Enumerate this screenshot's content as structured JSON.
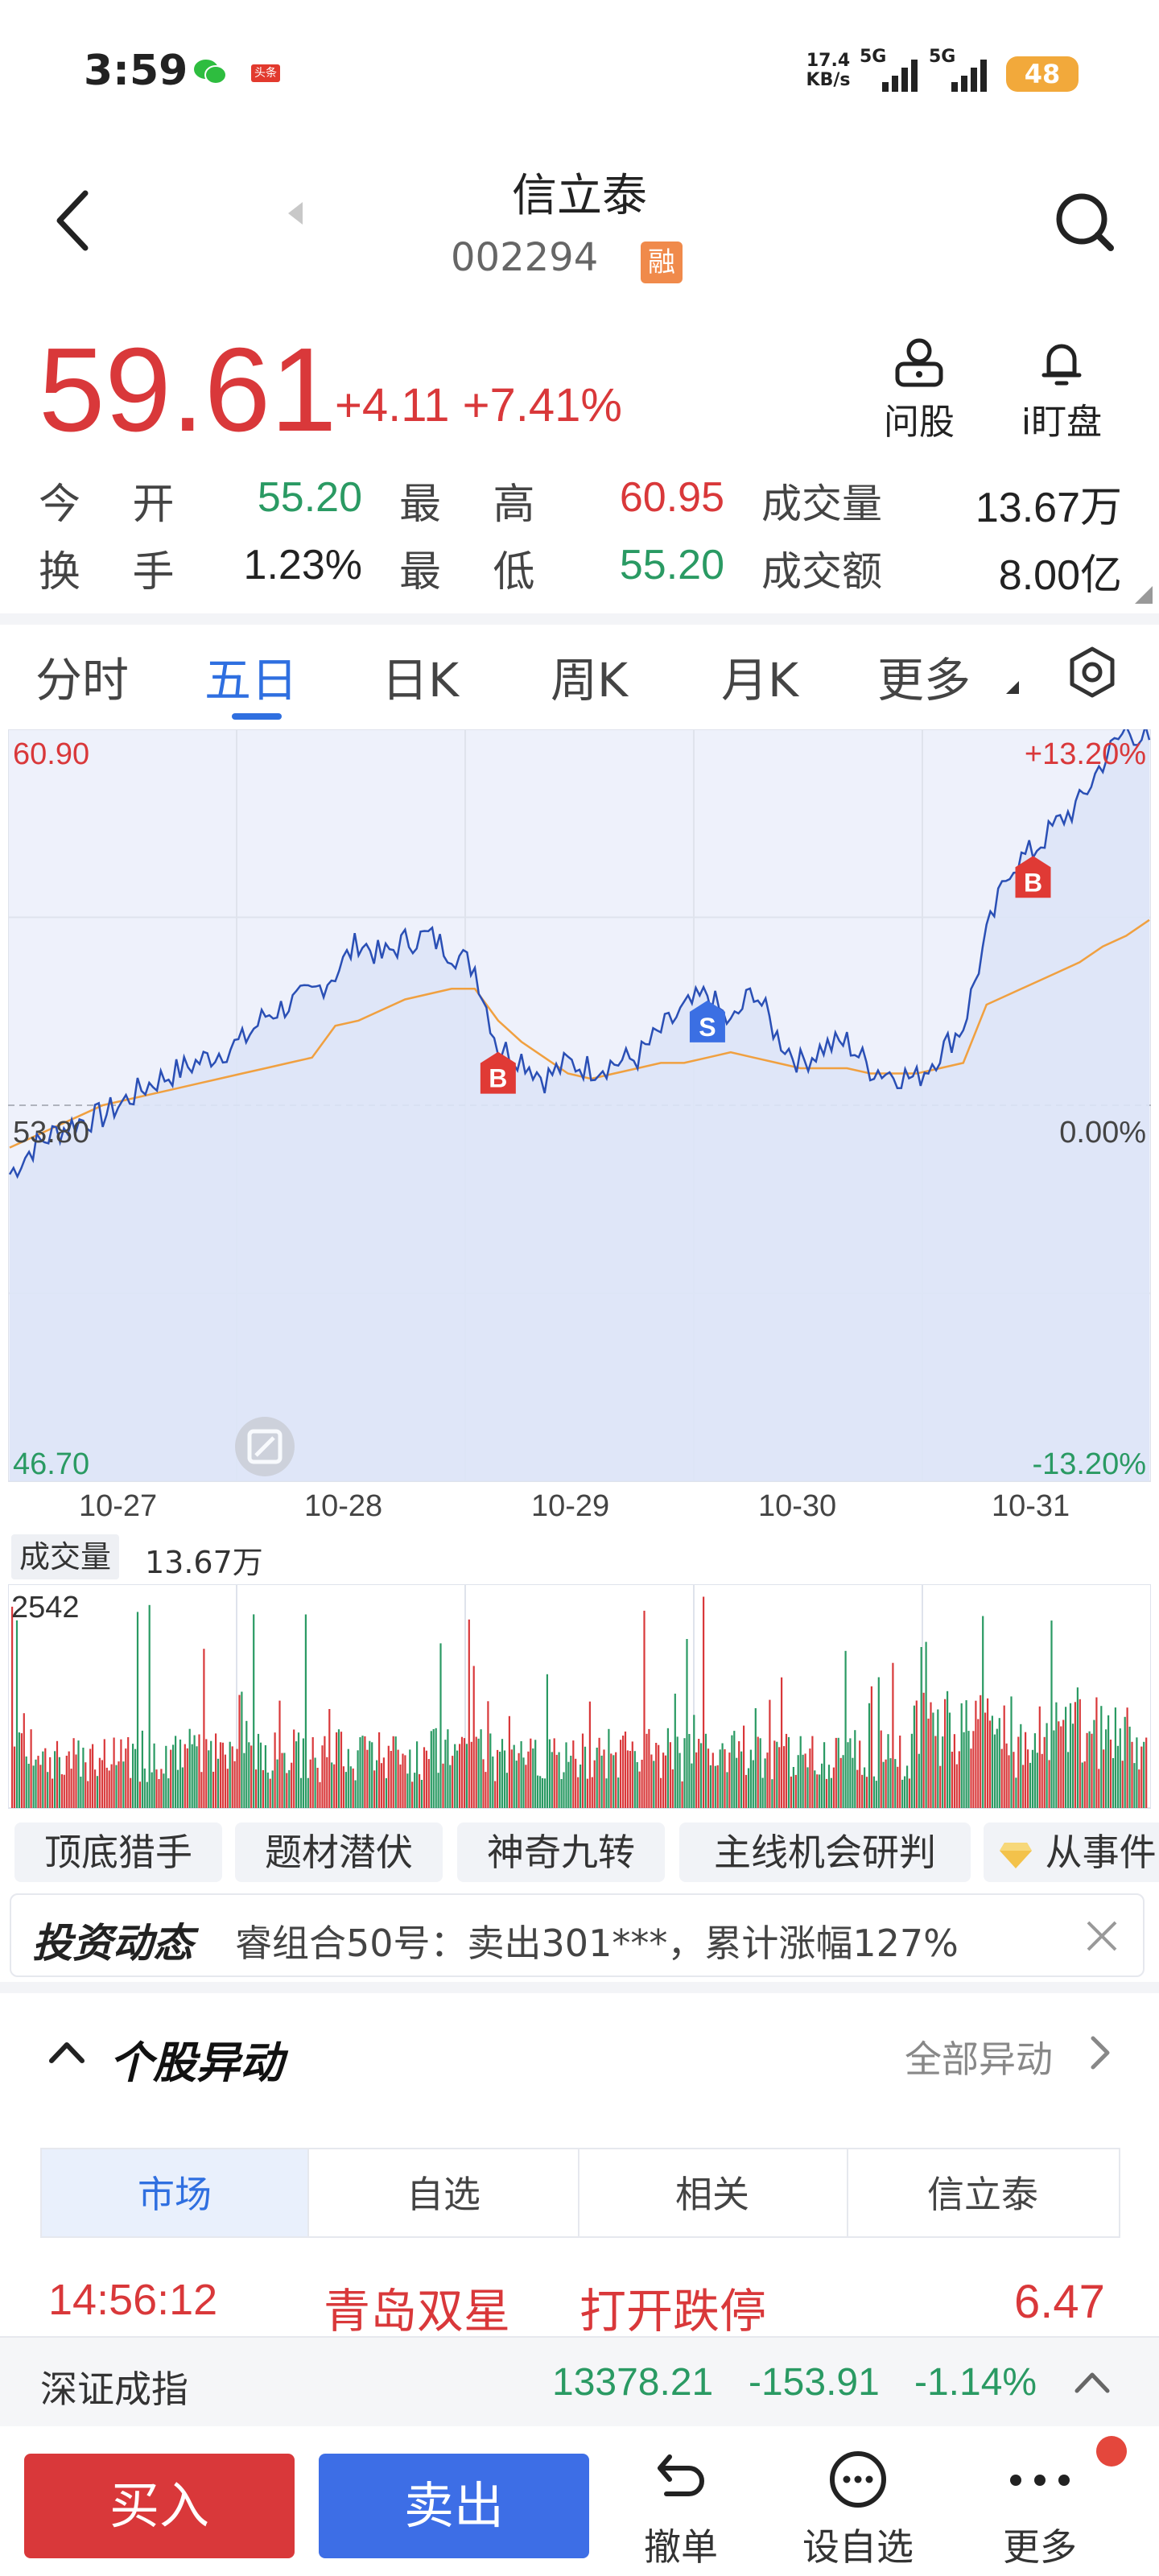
{
  "status_bar": {
    "time": "3:59",
    "net_speed_value": "17.4",
    "net_speed_unit": "KB/s",
    "signal1": "5G",
    "signal2": "5G",
    "battery": "48",
    "notif_badge": "头条"
  },
  "header": {
    "title": "信立泰",
    "code": "002294",
    "margin_badge": "融"
  },
  "quote": {
    "price": "59.61",
    "change": "+4.11",
    "change_pct": "+7.41%",
    "actions": [
      {
        "label": "问股",
        "icon": "ask-stock-icon"
      },
      {
        "label": "i盯盘",
        "icon": "bell-icon"
      }
    ],
    "rows": [
      {
        "l1": "今 开",
        "v1": "55.20",
        "l2": "最 高",
        "v2": "60.95",
        "l3": "成交量",
        "v3": "13.67万"
      },
      {
        "l1": "换 手",
        "v1": "1.23%",
        "l2": "最 低",
        "v2": "55.20",
        "l3": "成交额",
        "v3": "8.00亿"
      }
    ]
  },
  "tabs": [
    "分时",
    "五日",
    "日K",
    "周K",
    "月K",
    "更多"
  ],
  "active_tab": "五日",
  "chart_data": {
    "type": "line",
    "title": "",
    "x_dates": [
      "10-27",
      "10-28",
      "10-29",
      "10-30",
      "10-31"
    ],
    "y_top_label": "60.90",
    "y_mid_label": "53.80",
    "y_bottom_label": "46.70",
    "pct_top_label": "+13.20%",
    "pct_mid_label": "0.00%",
    "pct_bottom_label": "-13.20%",
    "ylim": [
      46.7,
      60.9
    ],
    "prev_close": 53.8,
    "price_series": [
      52.5,
      53.0,
      53.3,
      53.5,
      53.6,
      53.9,
      54.2,
      54.4,
      54.6,
      54.8,
      55.0,
      55.5,
      55.7,
      55.9,
      56.3,
      56.9,
      56.6,
      56.9,
      57.0,
      56.7,
      56.4,
      54.9,
      54.7,
      54.3,
      54.6,
      54.5,
      54.6,
      54.7,
      55.2,
      55.6,
      55.9,
      55.3,
      56.0,
      55.1,
      54.6,
      54.9,
      55.0,
      54.5,
      54.4,
      54.3,
      54.8,
      55.3,
      57.0,
      58.3,
      58.6,
      59.1,
      59.5,
      60.3,
      60.9,
      60.7
    ],
    "avg_series": [
      53.0,
      53.2,
      53.4,
      53.6,
      53.8,
      53.9,
      54.0,
      54.1,
      54.2,
      54.3,
      54.4,
      54.5,
      54.6,
      54.7,
      55.3,
      55.4,
      55.6,
      55.8,
      55.9,
      56.0,
      56.0,
      55.4,
      55.0,
      54.7,
      54.4,
      54.3,
      54.4,
      54.5,
      54.6,
      54.6,
      54.7,
      54.8,
      54.7,
      54.6,
      54.5,
      54.5,
      54.5,
      54.4,
      54.4,
      54.4,
      54.5,
      54.6,
      55.7,
      55.9,
      56.1,
      56.3,
      56.5,
      56.8,
      57.0,
      57.3
    ],
    "markers": [
      {
        "label": "B",
        "index": 21,
        "type": "buy"
      },
      {
        "label": "S",
        "index": 30,
        "type": "sell"
      },
      {
        "label": "B",
        "index": 44,
        "type": "buy"
      }
    ],
    "volume_label": "成交量",
    "volume_total": "13.67万",
    "volume_max_label": "2542"
  },
  "chips": [
    "顶底猎手",
    "题材潜伏",
    "神奇九转",
    "主线机会研判",
    "从事件"
  ],
  "news": {
    "brand": "投资动态",
    "text": "睿组合50号：卖出301***，累计涨幅127%"
  },
  "anomaly": {
    "title": "个股异动",
    "all_link": "全部异动",
    "subtabs": [
      "市场",
      "自选",
      "相关",
      "信立泰"
    ],
    "active_subtab": "市场",
    "event": {
      "time": "14:56:12",
      "stock": "青岛双星",
      "action": "打开跌停",
      "value": "6.47"
    }
  },
  "index_bar": {
    "name": "深证成指",
    "value": "13378.21",
    "change": "-153.91",
    "change_pct": "-1.14%"
  },
  "bottom_bar": {
    "buy": "买入",
    "sell": "卖出",
    "items": [
      {
        "label": "撤单",
        "icon": "undo-icon"
      },
      {
        "label": "设自选",
        "icon": "more-circle-icon"
      },
      {
        "label": "更多",
        "icon": "dots-icon"
      }
    ]
  },
  "colors": {
    "red": "#d9383a",
    "green": "#2a9a63",
    "blue": "#2f6fe0",
    "line": "#2a4fb5",
    "avg": "#f0a040"
  }
}
